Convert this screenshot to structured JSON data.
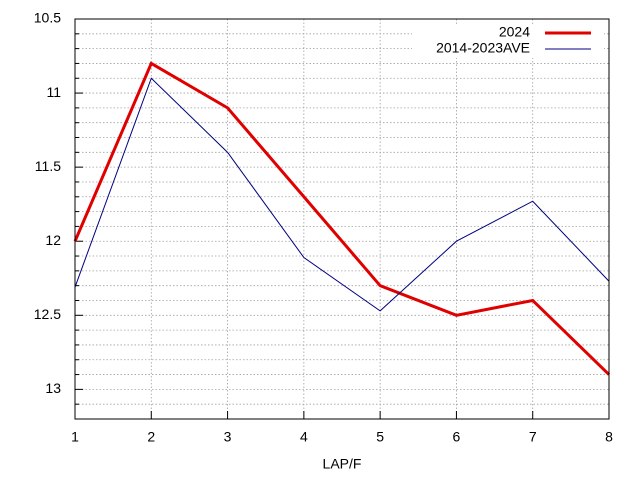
{
  "chart_data": {
    "type": "line",
    "x": [
      1,
      2,
      3,
      4,
      5,
      6,
      7,
      8
    ],
    "xlabel": "LAP/F",
    "xlim": [
      1,
      8
    ],
    "xticks": [
      1,
      2,
      3,
      4,
      5,
      6,
      7,
      8
    ],
    "ylim": [
      13.2,
      10.5
    ],
    "yticks": [
      10.5,
      11,
      11.5,
      12,
      12.5,
      13
    ],
    "yminorticks": [
      10.6,
      10.7,
      10.8,
      10.9,
      11.1,
      11.2,
      11.3,
      11.4,
      11.6,
      11.7,
      11.8,
      11.9,
      12.1,
      12.2,
      12.3,
      12.4,
      12.6,
      12.7,
      12.8,
      12.9,
      13.1
    ],
    "grid": true,
    "legend": "top-right",
    "series": [
      {
        "name": "2024",
        "color": "#e00000",
        "width": 3,
        "values": [
          12.0,
          10.8,
          11.1,
          11.7,
          12.3,
          12.5,
          12.4,
          12.9
        ]
      },
      {
        "name": "2014-2023AVE",
        "color": "#000080",
        "width": 1,
        "values": [
          12.31,
          10.9,
          11.4,
          12.11,
          12.47,
          12.0,
          11.73,
          12.27
        ]
      }
    ]
  }
}
